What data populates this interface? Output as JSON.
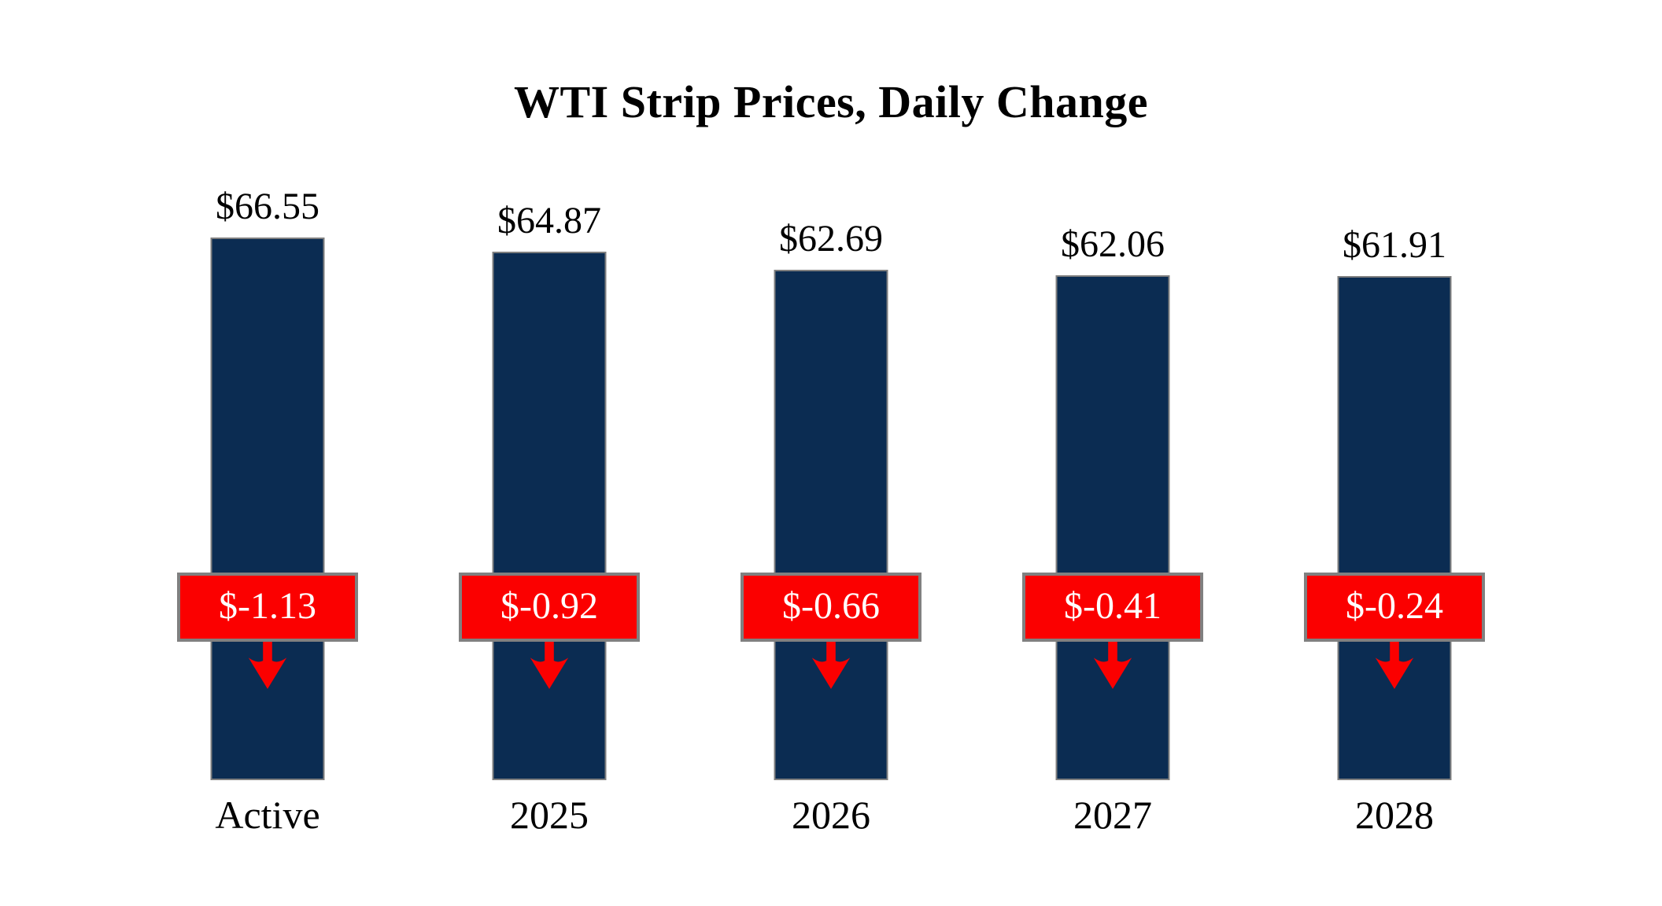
{
  "title": "WTI Strip Prices, Daily Change",
  "colors": {
    "background": "#FFFFFF",
    "bar": "#0B2C52",
    "bar_border": "#7F7F7F",
    "badge_background": "#FB0000",
    "badge_border": "#808080",
    "badge_text": "#FFFFFF",
    "arrow": "#FB0000",
    "text": "#000000"
  },
  "chart_data": {
    "type": "bar",
    "title": "WTI Strip Prices, Daily Change",
    "categories": [
      "Active",
      "2025",
      "2026",
      "2027",
      "2028"
    ],
    "series": [
      {
        "name": "WTI Strip Price",
        "values": [
          66.55,
          64.87,
          62.69,
          62.06,
          61.91
        ],
        "labels": [
          "$66.55",
          "$64.87",
          "$62.69",
          "$62.06",
          "$61.91"
        ],
        "label_position": "above-bar"
      },
      {
        "name": "Daily Change",
        "values": [
          -1.13,
          -0.92,
          -0.66,
          -0.41,
          -0.24
        ],
        "labels": [
          "$-1.13",
          "$-0.92",
          "$-0.66",
          "$-0.41",
          "$-0.24"
        ],
        "label_position": "badge-overlaid-mid-bar-with-down-arrow"
      }
    ],
    "xlabel": "",
    "ylabel": "",
    "value_axis_visible": false,
    "category_axis_visible": false,
    "gridlines": false,
    "legend": "none"
  }
}
